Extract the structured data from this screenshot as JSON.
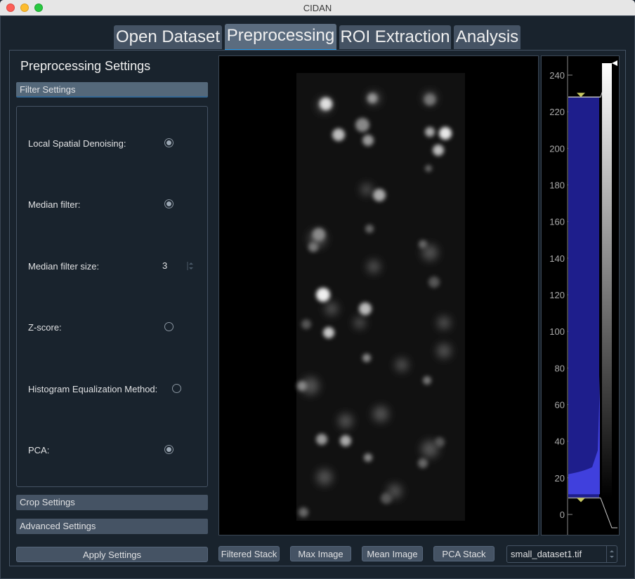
{
  "window": {
    "title": "CIDAN"
  },
  "tabs": [
    {
      "label": "Open Dataset"
    },
    {
      "label": "Preprocessing"
    },
    {
      "label": "ROI Extraction"
    },
    {
      "label": "Analysis"
    }
  ],
  "settings": {
    "title": "Preprocessing Settings",
    "filter_header": "Filter Settings",
    "crop_header": "Crop Settings",
    "advanced_header": "Advanced Settings",
    "items": [
      {
        "label": "Local Spatial Denoising:",
        "checked": true
      },
      {
        "label": "Median filter:",
        "checked": true
      },
      {
        "label": "Median filter size:",
        "value": "3"
      },
      {
        "label": "Z-score:",
        "checked": false
      },
      {
        "label": "Histogram Equalization Method:",
        "checked": false
      },
      {
        "label": "PCA:",
        "checked": true
      }
    ],
    "apply_label": "Apply Settings"
  },
  "viewer_buttons": [
    "Filtered Stack",
    "Max Image",
    "Mean Image",
    "PCA Stack"
  ],
  "dataset_select": {
    "value": "small_dataset1.tif"
  },
  "histogram": {
    "ticks": [
      "240",
      "220",
      "200",
      "180",
      "160",
      "140",
      "120",
      "100",
      "80",
      "60",
      "40",
      "20",
      "0"
    ],
    "axis_min": -10,
    "axis_max": 250,
    "level_high": 228,
    "level_low": 9,
    "fill_color": "#4040dd",
    "region_color": "#1e1e8c"
  },
  "colors": {
    "accent": "#259ae9",
    "tab_bg": "#455364",
    "panel_bg": "#19232d"
  }
}
